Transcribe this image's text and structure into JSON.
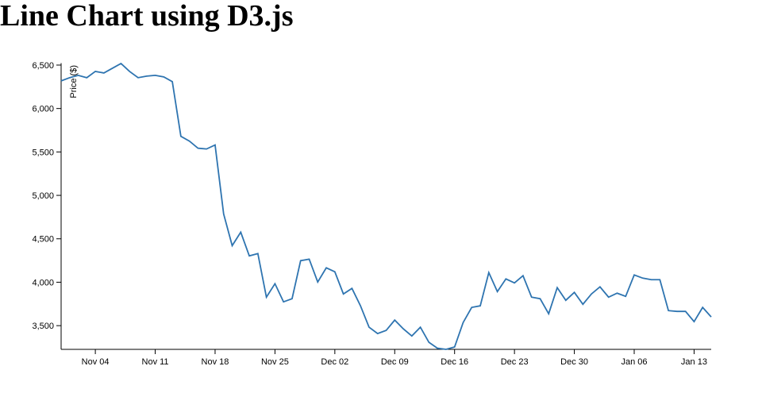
{
  "chart_data": {
    "type": "line",
    "title": "Line Chart using D3.js",
    "y_label": "Price ($)",
    "x": [
      0,
      1,
      2,
      3,
      4,
      5,
      6,
      7,
      8,
      9,
      10,
      11,
      12,
      13,
      14,
      15,
      16,
      17,
      18,
      19,
      20,
      21,
      22,
      23,
      24,
      25,
      26,
      27,
      28,
      29,
      30,
      31,
      32,
      33,
      34,
      35,
      36,
      37,
      38,
      39,
      40,
      41,
      42,
      43,
      44,
      45,
      46,
      47,
      48,
      49,
      50,
      51,
      52,
      53,
      54,
      55,
      56,
      57,
      58,
      59,
      60,
      61,
      62,
      63,
      64,
      65,
      66,
      67,
      68,
      69,
      70,
      71,
      72,
      73,
      74,
      75,
      76
    ],
    "series": [
      {
        "color": "#2e74b0",
        "values": [
          6318,
          6355,
          6382,
          6355,
          6427,
          6409,
          6464,
          6518,
          6427,
          6355,
          6373,
          6382,
          6364,
          6309,
          5680,
          5625,
          5543,
          5534,
          5580,
          4786,
          4421,
          4576,
          4303,
          4330,
          3828,
          3983,
          3774,
          3810,
          4248,
          4266,
          4002,
          4166,
          4120,
          3865,
          3929,
          3728,
          3482,
          3409,
          3445,
          3564,
          3464,
          3381,
          3482,
          3308,
          3240,
          3227,
          3254,
          3536,
          3710,
          3728,
          4111,
          3892,
          4038,
          3992,
          4075,
          3828,
          3810,
          3637,
          3938,
          3792,
          3883,
          3746,
          3865,
          3947,
          3828,
          3874,
          3837,
          4084,
          4047,
          4029,
          4029,
          3673,
          3664,
          3664,
          3546,
          3710,
          3600
        ]
      }
    ],
    "xlim": [
      0,
      76
    ],
    "xticks": [
      {
        "value": 4,
        "label": "Nov 04"
      },
      {
        "value": 11,
        "label": "Nov 11"
      },
      {
        "value": 18,
        "label": "Nov 18"
      },
      {
        "value": 25,
        "label": "Nov 25"
      },
      {
        "value": 32,
        "label": "Dec 02"
      },
      {
        "value": 39,
        "label": "Dec 09"
      },
      {
        "value": 46,
        "label": "Dec 16"
      },
      {
        "value": 53,
        "label": "Dec 23"
      },
      {
        "value": 60,
        "label": "Dec 30"
      },
      {
        "value": 67,
        "label": "Jan 06"
      },
      {
        "value": 74,
        "label": "Jan 13"
      }
    ],
    "ylim": [
      3227,
      6518
    ],
    "yticks": [
      {
        "value": 3500,
        "label": "3,500"
      },
      {
        "value": 4000,
        "label": "4,000"
      },
      {
        "value": 4500,
        "label": "4,500"
      },
      {
        "value": 5000,
        "label": "5,000"
      },
      {
        "value": 5500,
        "label": "5,500"
      },
      {
        "value": 6000,
        "label": "6,000"
      },
      {
        "value": 6500,
        "label": "6,500"
      }
    ]
  }
}
